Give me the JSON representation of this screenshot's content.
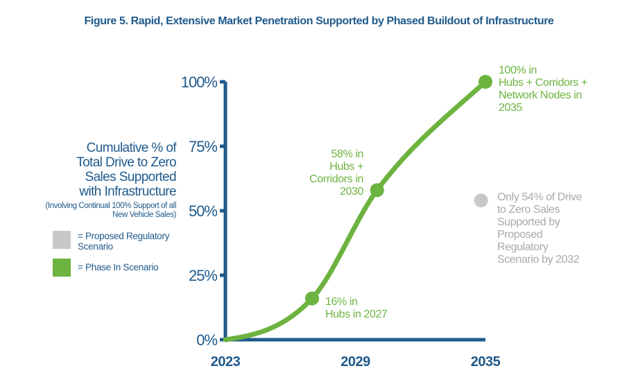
{
  "chart_data": {
    "type": "line",
    "title": "Figure 5. Rapid, Extensive Market Penetration Supported by Phased Buildout of Infrastructure",
    "ylabel": "Cumulative % of Total Drive to Zero Sales Supported with Infrastructure",
    "ylabel_note": "(Involving Continual 100% Support of all New Vehicle Sales)",
    "xlabel": "",
    "xlim": [
      2023,
      2035
    ],
    "ylim": [
      0,
      100
    ],
    "x_ticks": [
      "2023",
      "2029",
      "2035"
    ],
    "y_ticks": [
      "0%",
      "25%",
      "50%",
      "75%",
      "100%"
    ],
    "grid": false,
    "legend": [
      {
        "label": "= Proposed Regulatory Scenario",
        "color": "#c8c8c8"
      },
      {
        "label": "= Phase In Scenario",
        "color": "#6db33f"
      }
    ],
    "series": [
      {
        "name": "Phase In Scenario",
        "color": "#6db33f",
        "x": [
          2023,
          2027,
          2030,
          2035
        ],
        "y": [
          0,
          16,
          58,
          100
        ],
        "markers": [
          2027,
          2030,
          2035
        ]
      },
      {
        "name": "Proposed Regulatory Scenario",
        "color": "#c8c8c8",
        "x": [
          2034.8
        ],
        "y": [
          54
        ]
      }
    ],
    "annotations": [
      {
        "text": [
          "16% in",
          "Hubs in 2027"
        ],
        "color": "#6db33f"
      },
      {
        "text": [
          "58% in",
          "Hubs +",
          "Corridors in",
          "2030"
        ],
        "color": "#6db33f"
      },
      {
        "text": [
          "100% in",
          "Hubs + Corridors +",
          "Network Nodes in",
          "2035"
        ],
        "color": "#6db33f"
      },
      {
        "text": [
          "Only 54% of Drive",
          "to Zero Sales",
          "Supported by",
          "Proposed",
          "Regulatory",
          "Scenario by 2032"
        ],
        "color": "#a9a9a9"
      }
    ],
    "axis_color": "#1f5a8c"
  }
}
